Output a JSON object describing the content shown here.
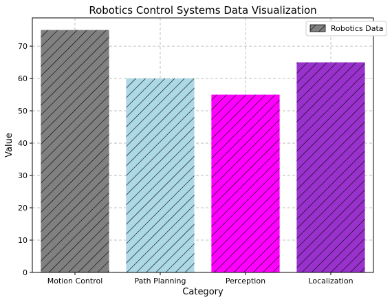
{
  "chart_data": {
    "type": "bar",
    "title": "Robotics Control Systems Data Visualization",
    "xlabel": "Category",
    "ylabel": "Value",
    "categories": [
      "Motion Control",
      "Path Planning",
      "Perception",
      "Localization"
    ],
    "series": [
      {
        "name": "Robotics Data",
        "values": [
          75,
          60,
          55,
          65
        ],
        "colors": [
          "#808080",
          "#add8e6",
          "#ff00ff",
          "#9932cc"
        ]
      }
    ],
    "ylim": [
      0,
      78.75
    ],
    "yticks": [
      0,
      10,
      20,
      30,
      40,
      50,
      60,
      70
    ],
    "grid": true,
    "grid_style": "dashed",
    "legend_position": "top-right",
    "bar_hatch": "diagonal"
  }
}
